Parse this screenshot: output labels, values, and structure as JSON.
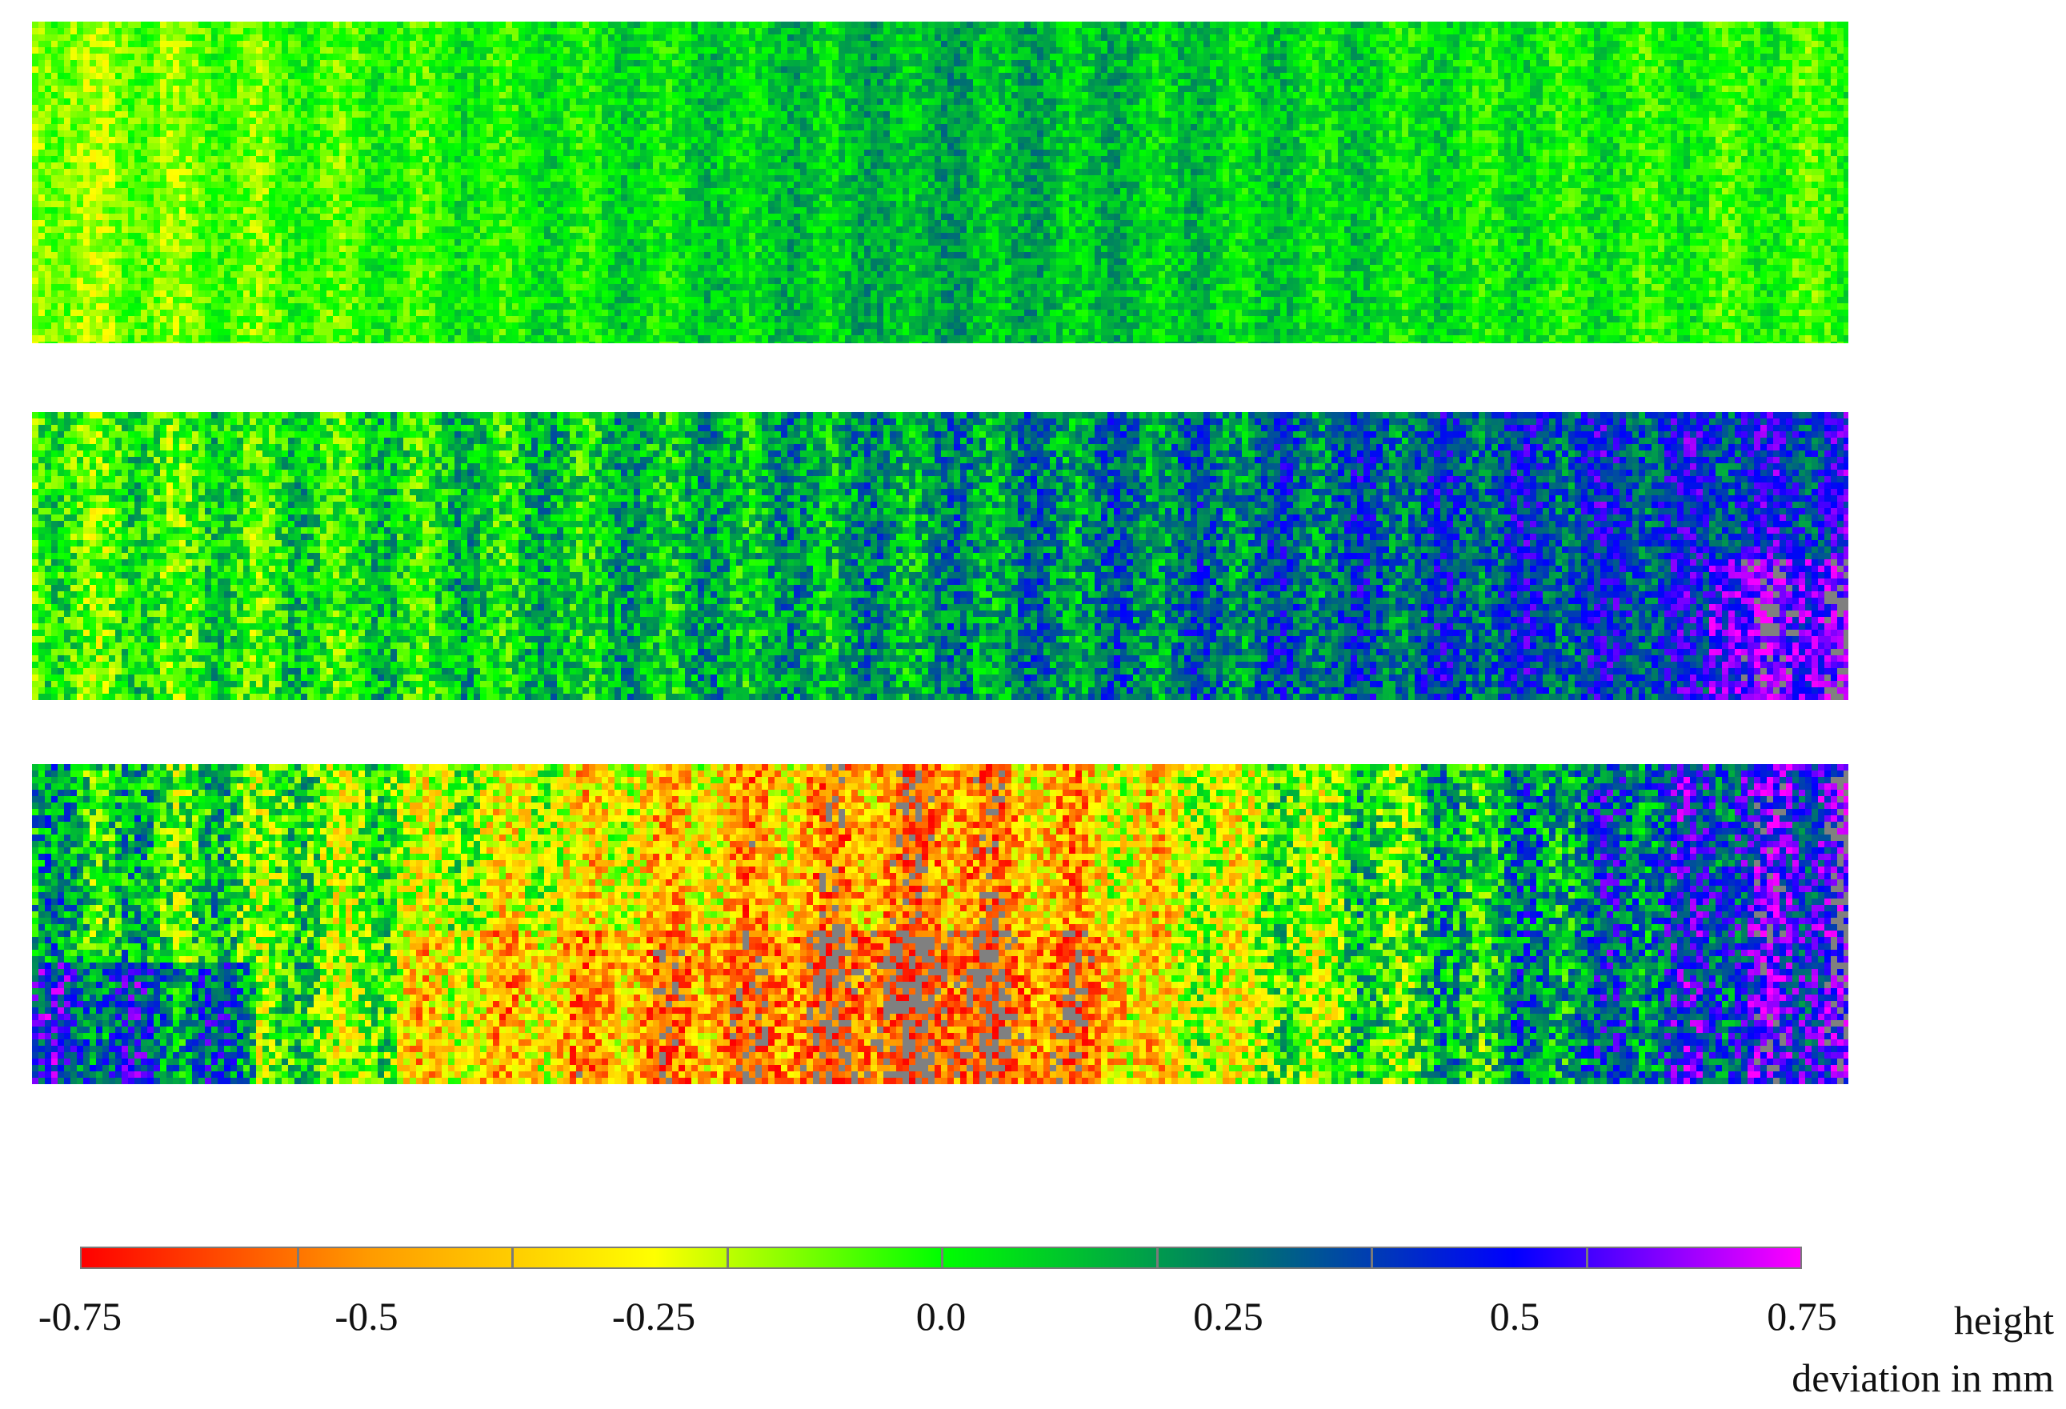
{
  "chart_data": {
    "type": "heatmap",
    "title": "",
    "maps": [
      {
        "panel": 1,
        "dominant_range": [
          -0.3,
          0.35
        ],
        "description_levels": [
          {
            "region": "left",
            "value": -0.15
          },
          {
            "region": "center",
            "value": 0.15
          },
          {
            "region": "right",
            "value": -0.05
          }
        ]
      },
      {
        "panel": 2,
        "dominant_range": [
          -0.5,
          0.6
        ],
        "description_levels": [
          {
            "region": "left",
            "value": -0.05
          },
          {
            "region": "center",
            "value": 0.2
          },
          {
            "region": "right",
            "value": 0.45
          }
        ]
      },
      {
        "panel": 3,
        "dominant_range": [
          -0.75,
          0.75
        ],
        "description_levels": [
          {
            "region": "left",
            "value": 0.15
          },
          {
            "region": "center",
            "value": -0.55
          },
          {
            "region": "right",
            "value": 0.6
          }
        ]
      }
    ],
    "colorbar": {
      "range": [
        -0.75,
        0.75
      ],
      "tick_values": [
        -0.75,
        -0.5,
        -0.25,
        0.0,
        0.25,
        0.5,
        0.75
      ],
      "tick_labels": [
        "-0.75",
        "-0.5",
        "-0.25",
        "0.0",
        "0.25",
        "0.5",
        "0.75"
      ],
      "label_line_1": "height",
      "label_line_2": "deviation in mm",
      "colors": [
        "#ff0000",
        "#ff9a00",
        "#ffff00",
        "#00ff00",
        "#007a66",
        "#0000ff",
        "#ff00ff"
      ],
      "out_of_range_color": "#808080",
      "segments": 8
    }
  }
}
